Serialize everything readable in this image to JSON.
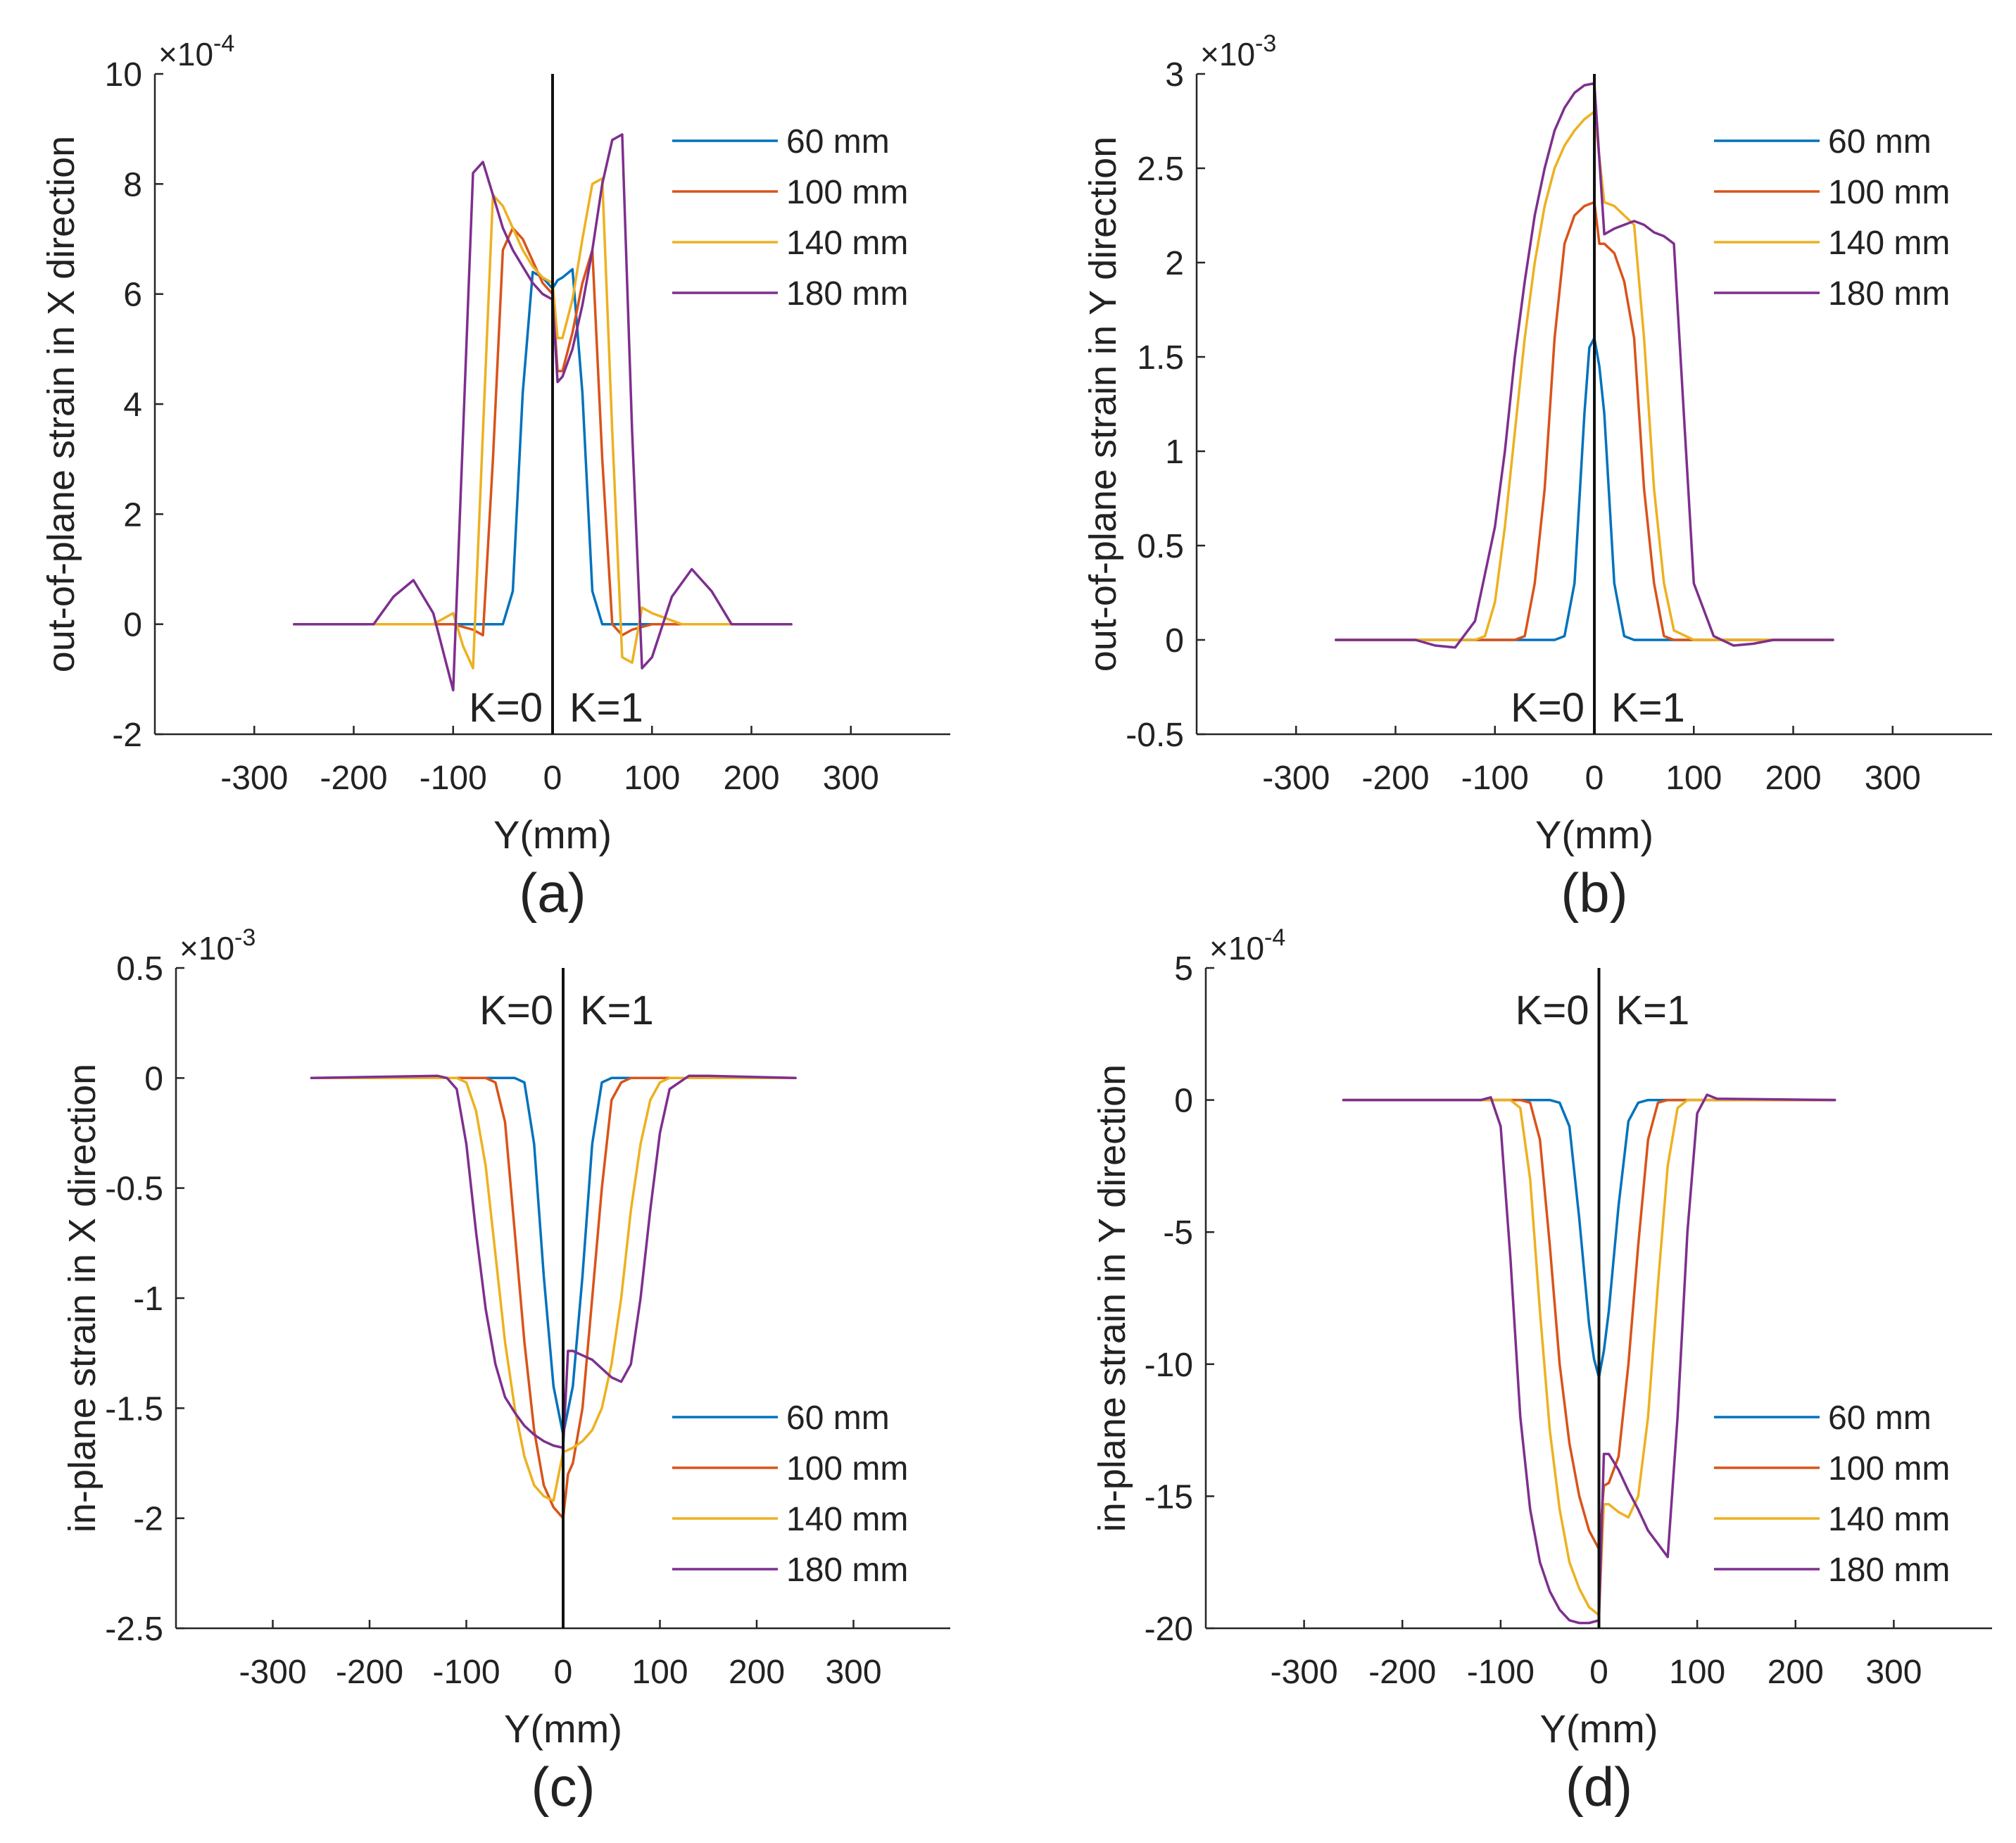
{
  "figure": {
    "panels": [
      {
        "letter": "(a)",
        "ylabel": "out-of-plane strain in X direction",
        "xlabel": "Y(mm)",
        "scale_label": "×10",
        "scale_exp": "-4",
        "left_label": "K=0",
        "right_label": "K=1",
        "legend_position": "top-right"
      },
      {
        "letter": "(b)",
        "ylabel": "out-of-plane strain in Y direction",
        "xlabel": "Y(mm)",
        "scale_label": "×10",
        "scale_exp": "-3",
        "left_label": "K=0",
        "right_label": "K=1",
        "legend_position": "top-right"
      },
      {
        "letter": "(c)",
        "ylabel": "in-plane strain in X direction",
        "xlabel": "Y(mm)",
        "scale_label": "×10",
        "scale_exp": "-3",
        "left_label": "K=0",
        "right_label": "K=1",
        "legend_position": "bottom-right"
      },
      {
        "letter": "(d)",
        "ylabel": "in-plane strain in Y direction",
        "xlabel": "Y(mm)",
        "scale_label": "×10",
        "scale_exp": "-4",
        "left_label": "K=0",
        "right_label": "K=1",
        "legend_position": "bottom-right"
      }
    ]
  },
  "chart_data": [
    {
      "type": "line",
      "title": "(a)",
      "xlabel": "Y(mm)",
      "ylabel": "out-of-plane strain in X direction",
      "y_multiplier": "×10^-4",
      "xlim": [
        -400,
        400
      ],
      "ylim": [
        -2,
        10
      ],
      "xticks": [
        -300,
        -200,
        -100,
        0,
        100,
        200,
        300
      ],
      "yticks": [
        -2,
        0,
        2,
        4,
        6,
        8,
        10
      ],
      "xtick_labels": [
        "-300",
        "-200",
        "-100",
        "0",
        "100",
        "200",
        "300"
      ],
      "ytick_labels": [
        "-2",
        "0",
        "2",
        "4",
        "6",
        "8",
        "10"
      ],
      "divider_x": 0,
      "series": [
        {
          "name": "60 mm",
          "color": "#0072BD",
          "x": [
            -260,
            -100,
            -50,
            -40,
            -30,
            -20,
            -10,
            0,
            5,
            10,
            20,
            30,
            40,
            50,
            60,
            100,
            240
          ],
          "y": [
            0,
            0,
            0,
            0.6,
            4.2,
            6.4,
            6.3,
            6.1,
            6.25,
            6.3,
            6.45,
            4.2,
            0.6,
            0,
            0,
            0,
            0
          ]
        },
        {
          "name": "100 mm",
          "color": "#D95319",
          "x": [
            -260,
            -100,
            -80,
            -70,
            -60,
            -50,
            -40,
            -30,
            -20,
            -10,
            0,
            5,
            10,
            20,
            30,
            40,
            50,
            60,
            70,
            80,
            100,
            240
          ],
          "y": [
            0,
            0,
            -0.1,
            -0.2,
            3.0,
            6.8,
            7.2,
            7.0,
            6.6,
            6.2,
            6.0,
            4.6,
            4.6,
            5.3,
            6.2,
            6.8,
            3.0,
            0,
            -0.2,
            -0.1,
            0,
            0
          ]
        },
        {
          "name": "140 mm",
          "color": "#EDB120",
          "x": [
            -260,
            -120,
            -100,
            -90,
            -80,
            -70,
            -60,
            -50,
            -40,
            -30,
            -20,
            -10,
            0,
            5,
            10,
            20,
            30,
            40,
            50,
            60,
            70,
            80,
            90,
            100,
            130,
            240
          ],
          "y": [
            0,
            0,
            0.2,
            -0.4,
            -0.8,
            3.5,
            7.8,
            7.6,
            7.2,
            6.8,
            6.5,
            6.3,
            6.2,
            5.2,
            5.2,
            5.9,
            7.0,
            8.0,
            8.1,
            3.5,
            -0.6,
            -0.7,
            0.3,
            0.2,
            0,
            0
          ]
        },
        {
          "name": "180 mm",
          "color": "#7E2F8E",
          "x": [
            -260,
            -180,
            -160,
            -140,
            -120,
            -100,
            -90,
            -80,
            -70,
            -60,
            -50,
            -40,
            -30,
            -20,
            -10,
            0,
            5,
            10,
            20,
            30,
            40,
            50,
            60,
            70,
            80,
            90,
            100,
            120,
            140,
            160,
            180,
            240
          ],
          "y": [
            0,
            0,
            0.5,
            0.8,
            0.2,
            -1.2,
            3.5,
            8.2,
            8.4,
            7.8,
            7.2,
            6.8,
            6.5,
            6.2,
            6.0,
            5.9,
            4.4,
            4.5,
            5.0,
            5.8,
            6.8,
            8.0,
            8.8,
            8.9,
            3.5,
            -0.8,
            -0.6,
            0.5,
            1.0,
            0.6,
            0,
            0
          ]
        }
      ]
    },
    {
      "type": "line",
      "title": "(b)",
      "xlabel": "Y(mm)",
      "ylabel": "out-of-plane strain in Y direction",
      "y_multiplier": "×10^-3",
      "xlim": [
        -400,
        400
      ],
      "ylim": [
        -0.5,
        3
      ],
      "xticks": [
        -300,
        -200,
        -100,
        0,
        100,
        200,
        300
      ],
      "yticks": [
        -0.5,
        0,
        0.5,
        1,
        1.5,
        2,
        2.5,
        3
      ],
      "xtick_labels": [
        "-300",
        "-200",
        "-100",
        "0",
        "100",
        "200",
        "300"
      ],
      "ytick_labels": [
        "-0.5",
        "0",
        "0.5",
        "1",
        "1.5",
        "2",
        "2.5",
        "3"
      ],
      "divider_x": 0,
      "series": [
        {
          "name": "60 mm",
          "color": "#0072BD",
          "x": [
            -260,
            -50,
            -40,
            -30,
            -20,
            -10,
            -5,
            0,
            5,
            10,
            20,
            30,
            40,
            50,
            240
          ],
          "y": [
            0,
            0,
            0,
            0.02,
            0.3,
            1.2,
            1.55,
            1.6,
            1.45,
            1.2,
            0.3,
            0.02,
            0,
            0,
            0
          ]
        },
        {
          "name": "100 mm",
          "color": "#D95319",
          "x": [
            -260,
            -80,
            -70,
            -60,
            -50,
            -40,
            -30,
            -20,
            -10,
            0,
            5,
            10,
            20,
            30,
            40,
            50,
            60,
            70,
            80,
            240
          ],
          "y": [
            0,
            0,
            0.02,
            0.3,
            0.8,
            1.6,
            2.1,
            2.25,
            2.3,
            2.32,
            2.1,
            2.1,
            2.05,
            1.9,
            1.6,
            0.8,
            0.3,
            0.02,
            0,
            0
          ]
        },
        {
          "name": "140 mm",
          "color": "#EDB120",
          "x": [
            -260,
            -120,
            -110,
            -100,
            -90,
            -80,
            -70,
            -60,
            -50,
            -40,
            -30,
            -20,
            -10,
            0,
            10,
            20,
            30,
            40,
            50,
            60,
            70,
            80,
            100,
            240
          ],
          "y": [
            0,
            0,
            0.02,
            0.2,
            0.6,
            1.1,
            1.6,
            2.0,
            2.3,
            2.5,
            2.62,
            2.7,
            2.76,
            2.8,
            2.32,
            2.3,
            2.25,
            2.2,
            1.6,
            0.8,
            0.3,
            0.05,
            0,
            0
          ]
        },
        {
          "name": "180 mm",
          "color": "#7E2F8E",
          "x": [
            -260,
            -180,
            -160,
            -140,
            -120,
            -100,
            -90,
            -80,
            -70,
            -60,
            -50,
            -40,
            -30,
            -20,
            -10,
            0,
            10,
            20,
            30,
            40,
            50,
            60,
            70,
            80,
            90,
            100,
            120,
            140,
            160,
            180,
            240
          ],
          "y": [
            0,
            0,
            -0.03,
            -0.04,
            0.1,
            0.6,
            1.0,
            1.5,
            1.9,
            2.25,
            2.5,
            2.7,
            2.82,
            2.9,
            2.94,
            2.95,
            2.15,
            2.18,
            2.2,
            2.22,
            2.2,
            2.16,
            2.14,
            2.1,
            1.2,
            0.3,
            0.02,
            -0.03,
            -0.02,
            0,
            0
          ]
        }
      ]
    },
    {
      "type": "line",
      "title": "(c)",
      "xlabel": "Y(mm)",
      "ylabel": "in-plane strain in X direction",
      "y_multiplier": "×10^-3",
      "xlim": [
        -400,
        400
      ],
      "ylim": [
        -2.5,
        0.5
      ],
      "xticks": [
        -300,
        -200,
        -100,
        0,
        100,
        200,
        300
      ],
      "yticks": [
        -2.5,
        -2,
        -1.5,
        -1,
        -0.5,
        0,
        0.5
      ],
      "xtick_labels": [
        "-300",
        "-200",
        "-100",
        "0",
        "100",
        "200",
        "300"
      ],
      "ytick_labels": [
        "-2.5",
        "-2",
        "-1.5",
        "-1",
        "-0.5",
        "0",
        "0.5"
      ],
      "divider_x": 0,
      "series": [
        {
          "name": "60 mm",
          "color": "#0072BD",
          "x": [
            -260,
            -50,
            -40,
            -30,
            -20,
            -10,
            0,
            10,
            20,
            30,
            40,
            50,
            240
          ],
          "y": [
            0,
            0,
            -0.02,
            -0.3,
            -0.9,
            -1.4,
            -1.62,
            -1.4,
            -0.9,
            -0.3,
            -0.02,
            0,
            0
          ]
        },
        {
          "name": "100 mm",
          "color": "#D95319",
          "x": [
            -260,
            -80,
            -70,
            -60,
            -50,
            -40,
            -30,
            -20,
            -10,
            0,
            5,
            10,
            20,
            30,
            40,
            50,
            60,
            70,
            80,
            240
          ],
          "y": [
            0,
            0,
            -0.02,
            -0.2,
            -0.7,
            -1.2,
            -1.6,
            -1.85,
            -1.95,
            -2.0,
            -1.8,
            -1.75,
            -1.5,
            -1.0,
            -0.5,
            -0.1,
            -0.02,
            0,
            0,
            0
          ]
        },
        {
          "name": "140 mm",
          "color": "#EDB120",
          "x": [
            -260,
            -110,
            -100,
            -90,
            -80,
            -70,
            -60,
            -50,
            -40,
            -30,
            -20,
            -10,
            0,
            10,
            20,
            30,
            40,
            50,
            60,
            70,
            80,
            90,
            100,
            110,
            240
          ],
          "y": [
            0,
            0,
            -0.02,
            -0.15,
            -0.4,
            -0.8,
            -1.2,
            -1.5,
            -1.72,
            -1.85,
            -1.9,
            -1.92,
            -1.7,
            -1.68,
            -1.65,
            -1.6,
            -1.5,
            -1.3,
            -1.0,
            -0.6,
            -0.3,
            -0.1,
            -0.02,
            0,
            0
          ]
        },
        {
          "name": "180 mm",
          "color": "#7E2F8E",
          "x": [
            -260,
            -130,
            -120,
            -110,
            -100,
            -90,
            -80,
            -70,
            -60,
            -50,
            -40,
            -30,
            -20,
            -10,
            0,
            5,
            10,
            20,
            30,
            40,
            50,
            60,
            70,
            80,
            90,
            100,
            110,
            130,
            150,
            240
          ],
          "y": [
            0,
            0.01,
            0,
            -0.05,
            -0.3,
            -0.7,
            -1.05,
            -1.3,
            -1.45,
            -1.52,
            -1.58,
            -1.62,
            -1.65,
            -1.67,
            -1.68,
            -1.24,
            -1.24,
            -1.26,
            -1.28,
            -1.32,
            -1.36,
            -1.38,
            -1.3,
            -1.0,
            -0.6,
            -0.25,
            -0.05,
            0.01,
            0.01,
            0
          ]
        }
      ]
    },
    {
      "type": "line",
      "title": "(d)",
      "xlabel": "Y(mm)",
      "ylabel": "in-plane strain in Y direction",
      "y_multiplier": "×10^-4",
      "xlim": [
        -400,
        400
      ],
      "ylim": [
        -20,
        5
      ],
      "xticks": [
        -300,
        -200,
        -100,
        0,
        100,
        200,
        300
      ],
      "yticks": [
        -20,
        -15,
        -10,
        -5,
        0,
        5
      ],
      "xtick_labels": [
        "-300",
        "-200",
        "-100",
        "0",
        "100",
        "200",
        "300"
      ],
      "ytick_labels": [
        "-20",
        "-15",
        "-10",
        "-5",
        "0",
        "5"
      ],
      "divider_x": 0,
      "series": [
        {
          "name": "60 mm",
          "color": "#0072BD",
          "x": [
            -260,
            -50,
            -40,
            -30,
            -20,
            -10,
            -5,
            0,
            5,
            10,
            20,
            30,
            40,
            50,
            240
          ],
          "y": [
            0,
            0,
            -0.1,
            -1.0,
            -4.5,
            -8.5,
            -9.8,
            -10.5,
            -9.5,
            -8.0,
            -4.0,
            -0.8,
            -0.1,
            0,
            0
          ]
        },
        {
          "name": "100 mm",
          "color": "#D95319",
          "x": [
            -260,
            -80,
            -70,
            -60,
            -50,
            -40,
            -30,
            -20,
            -10,
            0,
            5,
            10,
            20,
            30,
            40,
            50,
            60,
            70,
            80,
            240
          ],
          "y": [
            0,
            0,
            -0.1,
            -1.5,
            -5.5,
            -10.0,
            -13.0,
            -15.0,
            -16.3,
            -17.0,
            -14.6,
            -14.5,
            -13.5,
            -10.0,
            -5.5,
            -1.5,
            -0.1,
            0,
            0,
            0
          ]
        },
        {
          "name": "140 mm",
          "color": "#EDB120",
          "x": [
            -260,
            -90,
            -80,
            -70,
            -60,
            -50,
            -40,
            -30,
            -20,
            -10,
            0,
            5,
            10,
            20,
            30,
            40,
            50,
            60,
            70,
            80,
            90,
            240
          ],
          "y": [
            0,
            0,
            -0.3,
            -3.0,
            -8.0,
            -12.5,
            -15.5,
            -17.5,
            -18.5,
            -19.2,
            -19.5,
            -15.3,
            -15.3,
            -15.6,
            -15.8,
            -15.0,
            -12.0,
            -7.0,
            -2.5,
            -0.3,
            0,
            0
          ]
        },
        {
          "name": "180 mm",
          "color": "#7E2F8E",
          "x": [
            -260,
            -130,
            -120,
            -110,
            -100,
            -90,
            -80,
            -70,
            -60,
            -50,
            -40,
            -30,
            -20,
            -10,
            0,
            5,
            10,
            20,
            30,
            40,
            50,
            60,
            70,
            80,
            90,
            100,
            110,
            120,
            240
          ],
          "y": [
            0,
            0,
            0,
            0.1,
            -1.0,
            -6.0,
            -12.0,
            -15.5,
            -17.5,
            -18.6,
            -19.3,
            -19.7,
            -19.8,
            -19.8,
            -19.7,
            -13.4,
            -13.4,
            -14.0,
            -14.8,
            -15.5,
            -16.3,
            -16.8,
            -17.3,
            -12.0,
            -5.0,
            -0.5,
            0.2,
            0.05,
            0
          ]
        }
      ]
    }
  ]
}
